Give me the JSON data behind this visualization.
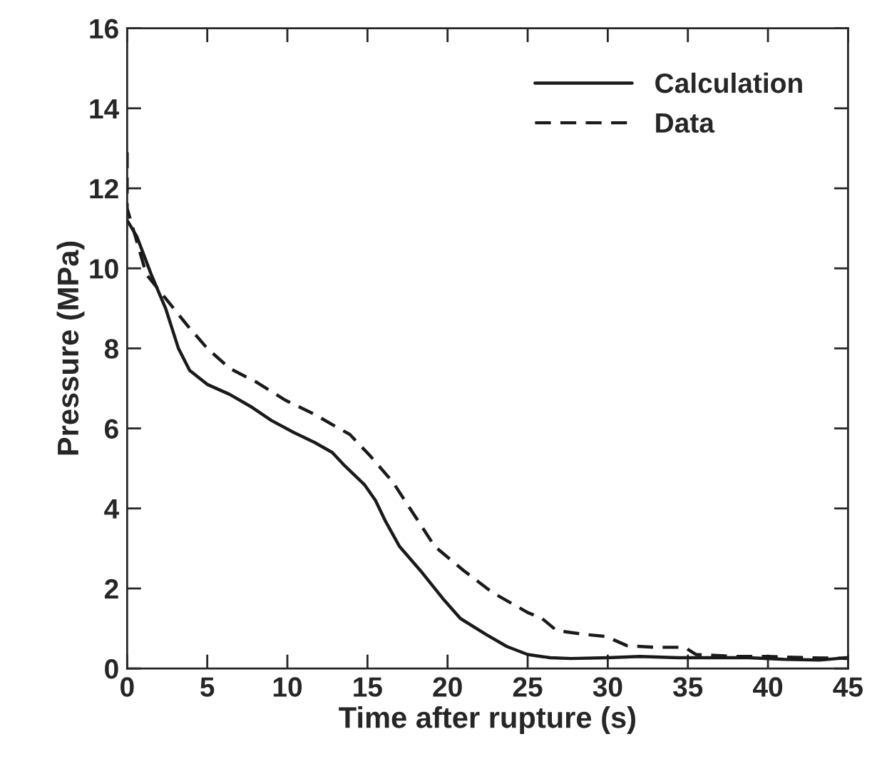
{
  "chart_data": {
    "type": "line",
    "xlabel": "Time after rupture (s)",
    "ylabel": "Pressure (MPa)",
    "xlim": [
      0,
      45
    ],
    "xticks": [
      0,
      5,
      10,
      15,
      20,
      25,
      30,
      35,
      40,
      45
    ],
    "ylim": [
      0,
      16
    ],
    "yticks": [
      0,
      2,
      4,
      6,
      8,
      10,
      12,
      14,
      16
    ],
    "grid": false,
    "legend": "top right",
    "marker": "none",
    "series": [
      {
        "name": "Calculation",
        "color": "#1a1a1a",
        "line_style": "solid",
        "x": [
          0,
          0.6,
          1.5,
          2.4,
          3.2,
          3.9,
          5,
          6.4,
          7.7,
          9,
          10.4,
          11.7,
          12.8,
          13.5,
          14.8,
          15.5,
          16.1,
          17,
          18.3,
          19.7,
          20.8,
          22.4,
          23.7,
          25,
          26.4,
          27.7,
          30,
          32,
          34.4,
          36.6,
          38.8,
          41,
          43.2,
          44.9
        ],
        "values": [
          11.2,
          10.8,
          9.85,
          9.0,
          8.0,
          7.45,
          7.1,
          6.85,
          6.55,
          6.2,
          5.9,
          5.65,
          5.4,
          5.1,
          4.6,
          4.2,
          3.7,
          3.05,
          2.45,
          1.75,
          1.25,
          0.85,
          0.55,
          0.35,
          0.27,
          0.25,
          0.27,
          0.3,
          0.27,
          0.27,
          0.27,
          0.23,
          0.21,
          0.27
        ]
      },
      {
        "name": "Data",
        "color": "#1a1a1a",
        "line_style": "dashed",
        "x": [
          0,
          0,
          1.2,
          2.1,
          3.7,
          5,
          6.4,
          8.1,
          9.9,
          11.7,
          13,
          13.9,
          15.2,
          16.6,
          17.9,
          19.2,
          21,
          22.8,
          25,
          25.9,
          26.8,
          28.6,
          29.9,
          31.2,
          33,
          34.8,
          35.5,
          38,
          40,
          42.5,
          45
        ],
        "values": [
          12.9,
          11.5,
          9.85,
          9.4,
          8.6,
          8.0,
          7.5,
          7.15,
          6.7,
          6.35,
          6.05,
          5.85,
          5.3,
          4.65,
          3.85,
          3.05,
          2.45,
          1.9,
          1.4,
          1.25,
          0.95,
          0.85,
          0.8,
          0.57,
          0.53,
          0.53,
          0.35,
          0.3,
          0.3,
          0.27,
          0.25
        ]
      }
    ]
  }
}
